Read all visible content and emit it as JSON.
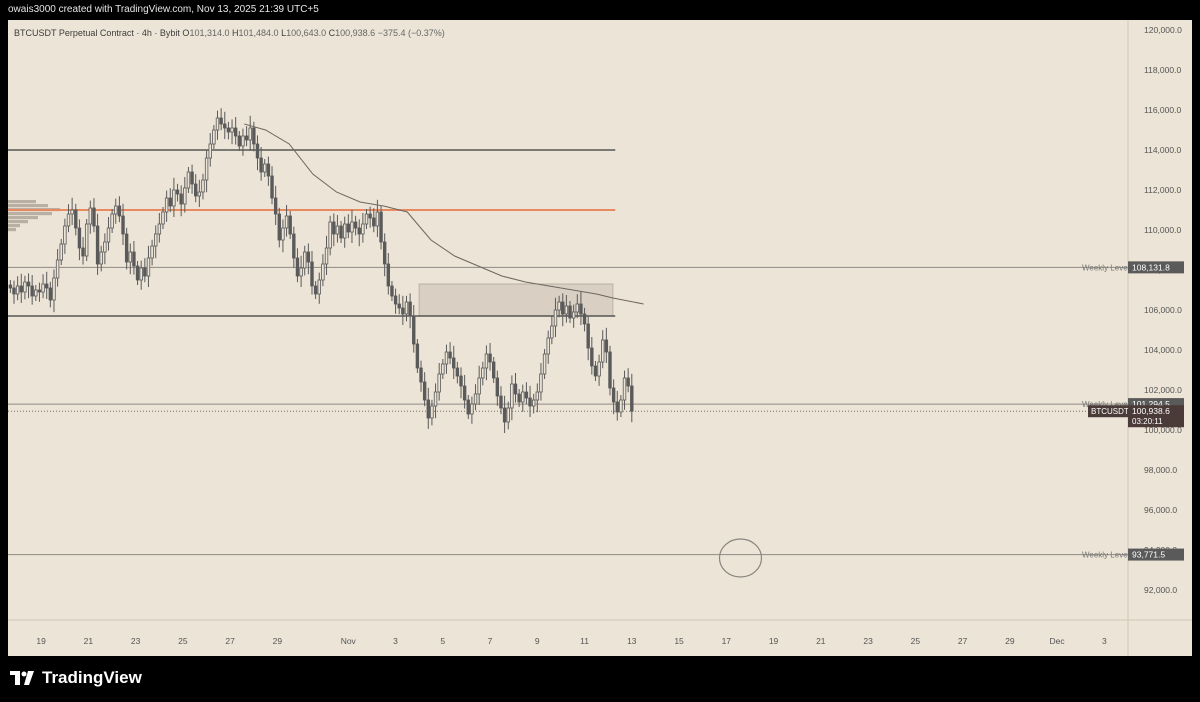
{
  "header": {
    "attribution": "owais3000 created with TradingView.com, Nov 13, 2025 21:39 UTC+5"
  },
  "legend": {
    "symbol": "BTCUSDT Perpetual Contract · 4h · Bybit",
    "open_label": "O",
    "open": "101,314.0",
    "high_label": "H",
    "high": "101,484.0",
    "low_label": "L",
    "low": "100,643.0",
    "close_label": "C",
    "close": "100,938.6",
    "change": "−375.4 (−0.37%)"
  },
  "footer": {
    "brand": "TradingView"
  },
  "colors": {
    "background": "#ece4d6",
    "candle": "#5a5a5a",
    "orange_level": "#e8895f",
    "level_line": "#3a3a3a",
    "zone_fill": "#d9cfc2",
    "tag_dark": "#4a3a38"
  },
  "chart_data": {
    "type": "candlestick",
    "ylim": [
      90500,
      120500
    ],
    "y_ticks": [
      "120,000.0",
      "118,000.0",
      "116,000.0",
      "114,000.0",
      "112,000.0",
      "110,000.0",
      "108,000.0",
      "106,000.0",
      "104,000.0",
      "102,000.0",
      "100,000.0",
      "98,000.0",
      "96,000.0",
      "94,000.0",
      "92,000.0"
    ],
    "y_tick_values": [
      120000,
      118000,
      116000,
      114000,
      112000,
      110000,
      108000,
      106000,
      104000,
      102000,
      100000,
      98000,
      96000,
      94000,
      92000
    ],
    "x_ticks": [
      "19",
      "21",
      "23",
      "25",
      "27",
      "29",
      "Nov",
      "3",
      "5",
      "7",
      "9",
      "11",
      "13",
      "15",
      "17",
      "19",
      "21",
      "23",
      "25",
      "27",
      "29",
      "Dec",
      "3"
    ],
    "x_tick_days": [
      19,
      21,
      23,
      25,
      27,
      29,
      32,
      34,
      36,
      38,
      40,
      42,
      44,
      46,
      48,
      50,
      52,
      54,
      56,
      58,
      60,
      62,
      64
    ],
    "x_range_days": [
      17.6,
      65.0
    ],
    "candle_closes": [
      107100,
      106800,
      107200,
      106900,
      107400,
      107200,
      106700,
      107000,
      106900,
      107300,
      107100,
      106500,
      107600,
      108500,
      109300,
      110200,
      110800,
      111000,
      110100,
      109100,
      108700,
      110300,
      111100,
      110200,
      108300,
      108900,
      109400,
      110100,
      110800,
      111200,
      110700,
      109800,
      108400,
      108900,
      108200,
      107500,
      108100,
      107700,
      108600,
      109200,
      109800,
      110300,
      110900,
      111600,
      111200,
      112000,
      111800,
      111300,
      112100,
      112900,
      112300,
      111700,
      111900,
      112500,
      113600,
      114300,
      115000,
      115600,
      115300,
      115100,
      114900,
      115100,
      114700,
      114200,
      114700,
      114500,
      115100,
      114300,
      113600,
      112900,
      113300,
      112700,
      111600,
      110800,
      109500,
      110100,
      110700,
      109800,
      108600,
      107700,
      108100,
      108900,
      108400,
      107200,
      106800,
      107500,
      108300,
      109100,
      110400,
      109800,
      110200,
      109600,
      110300,
      109900,
      110400,
      110100,
      109800,
      110300,
      110800,
      110600,
      110200,
      110900,
      109400,
      108300,
      107200,
      106700,
      106300,
      106100,
      105800,
      106400,
      105700,
      104300,
      103100,
      102400,
      101500,
      100600,
      101200,
      101900,
      102800,
      103300,
      103900,
      103600,
      103100,
      102700,
      102200,
      101500,
      100800,
      101300,
      101800,
      102600,
      103100,
      103800,
      103400,
      102600,
      101700,
      101100,
      100400,
      101100,
      102300,
      101800,
      101400,
      101900,
      101600,
      101200,
      101500,
      101900,
      102800,
      103800,
      104600,
      105200,
      106000,
      106400,
      105800,
      106200,
      105600,
      105900,
      106300,
      105800,
      105300,
      104100,
      103200,
      102700,
      103400,
      104500,
      103900,
      102100,
      101400,
      100900,
      101500,
      102600,
      102200,
      100938.6
    ],
    "series": [
      {
        "name": "",
        "type": "moving-average",
        "points": [
          [
            27.6,
            115300
          ],
          [
            28.5,
            115000
          ],
          [
            29.5,
            114300
          ],
          [
            30.5,
            112800
          ],
          [
            31.5,
            111900
          ],
          [
            32.5,
            111400
          ],
          [
            33.5,
            111200
          ],
          [
            34.5,
            110900
          ],
          [
            35.0,
            110200
          ],
          [
            35.5,
            109500
          ],
          [
            36.5,
            108700
          ],
          [
            37.5,
            108200
          ],
          [
            38.5,
            107700
          ],
          [
            39.5,
            107400
          ],
          [
            40.5,
            107200
          ],
          [
            41.5,
            107000
          ],
          [
            42.5,
            106800
          ],
          [
            43.2,
            106600
          ],
          [
            44.5,
            106300
          ]
        ]
      }
    ],
    "levels": [
      {
        "label": "",
        "value": 114000,
        "style": "solid-dark",
        "x_end_day": 43.3
      },
      {
        "label": "",
        "value": 111000,
        "style": "solid-orange",
        "x_end_day": 43.3
      },
      {
        "label": "Weekly Level",
        "value": 108131.8,
        "tag": "108,131.8",
        "style": "thin-grey"
      },
      {
        "label": "",
        "value": 105700,
        "style": "solid-dark",
        "x_end_day": 43.3
      },
      {
        "label": "Weekly Level",
        "value": 101294.5,
        "tag": "101,294.5",
        "style": "thin-grey"
      },
      {
        "label": "Weekly Level",
        "value": 93771.5,
        "tag": "93,771.5",
        "style": "thin-grey"
      }
    ],
    "zone": {
      "x_start_day": 35.0,
      "x_end_day": 43.2,
      "y_low": 105700,
      "y_high": 107300
    },
    "current_price": {
      "symbol": "BTCUSDT.P",
      "price": "100,938.6",
      "countdown": "03:20:11",
      "value": 100938.6
    },
    "annotation_circle": {
      "day": 48.6,
      "value": 93800
    }
  }
}
